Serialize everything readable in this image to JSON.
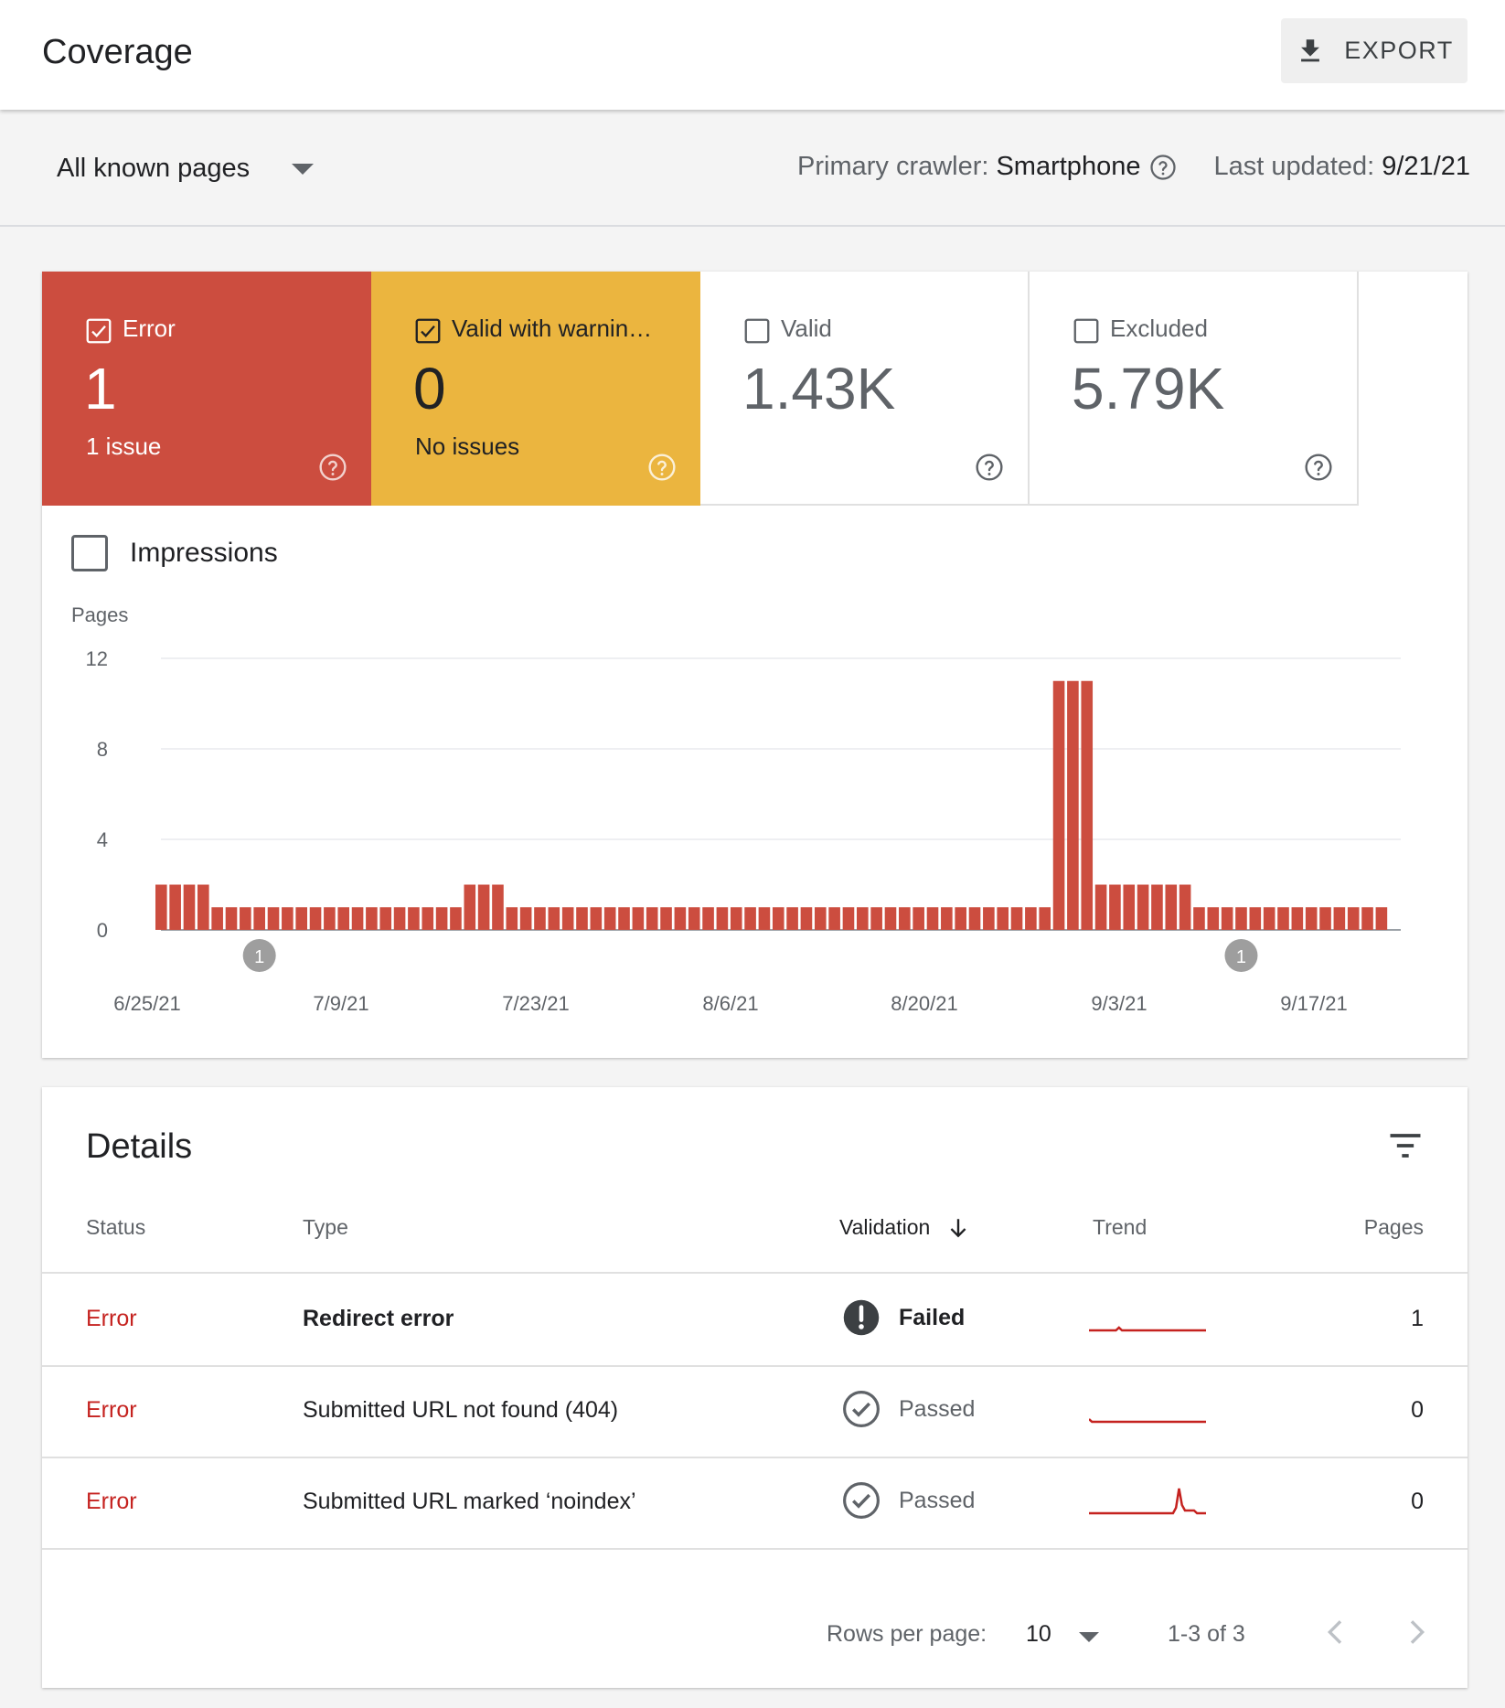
{
  "header": {
    "title": "Coverage",
    "export_label": "EXPORT"
  },
  "filter": {
    "page_select": "All known pages",
    "crawler_label": "Primary crawler:",
    "crawler_value": "Smartphone",
    "updated_label": "Last updated:",
    "updated_value": "9/21/21"
  },
  "tiles": [
    {
      "label": "Error",
      "value": "1",
      "sub": "1 issue",
      "checked": true
    },
    {
      "label": "Valid with warnin…",
      "value": "0",
      "sub": "No issues",
      "checked": true
    },
    {
      "label": "Valid",
      "value": "1.43K",
      "sub": "",
      "checked": false
    },
    {
      "label": "Excluded",
      "value": "5.79K",
      "sub": "",
      "checked": false
    }
  ],
  "impressions_label": "Impressions",
  "colors": {
    "error": "#cc4d3f",
    "warning": "#ebb53f",
    "link_error": "#c5221f"
  },
  "chart_data": {
    "type": "bar",
    "ylabel": "Pages",
    "yticks": [
      0,
      4,
      8,
      12
    ],
    "ylim": [
      0,
      12
    ],
    "grid": true,
    "x_tick_labels": [
      "6/25/21",
      "7/9/21",
      "7/23/21",
      "8/6/21",
      "8/20/21",
      "9/3/21",
      "9/17/21"
    ],
    "series": [
      {
        "values": [
          2,
          2,
          2,
          2,
          1,
          1,
          1,
          1,
          1,
          1,
          1,
          1,
          1,
          1,
          1,
          1,
          1,
          1,
          1,
          1,
          1,
          1,
          2,
          2,
          2,
          1,
          1,
          1,
          1,
          1,
          1,
          1,
          1,
          1,
          1,
          1,
          1,
          1,
          1,
          1,
          1,
          1,
          1,
          1,
          1,
          1,
          1,
          1,
          1,
          1,
          1,
          1,
          1,
          1,
          1,
          1,
          1,
          1,
          1,
          1,
          1,
          1,
          1,
          1,
          11,
          11,
          11,
          2,
          2,
          2,
          2,
          2,
          2,
          2,
          1,
          1,
          1,
          1,
          1,
          1,
          1,
          1,
          1,
          1,
          1,
          1,
          1,
          1
        ]
      }
    ],
    "annotations": [
      {
        "bar_index": 7,
        "label": "1"
      },
      {
        "bar_index": 77,
        "label": "1"
      }
    ]
  },
  "details": {
    "title": "Details",
    "columns": {
      "status": "Status",
      "type": "Type",
      "validation": "Validation",
      "trend": "Trend",
      "pages": "Pages"
    },
    "rows": [
      {
        "status": "Error",
        "type": "Redirect error",
        "validation": "Failed",
        "pages": "1",
        "trend": [
          0,
          0,
          0,
          0,
          0,
          0,
          0,
          0,
          0,
          0,
          1,
          0,
          0,
          0,
          0,
          0,
          0,
          0,
          0,
          0,
          0,
          0,
          0,
          0,
          0,
          0,
          0,
          0,
          0,
          0,
          0,
          0,
          0,
          0,
          0,
          0,
          0,
          0,
          0,
          0
        ]
      },
      {
        "status": "Error",
        "type": "Submitted URL not found (404)",
        "validation": "Passed",
        "pages": "0",
        "trend": [
          1,
          0,
          0,
          0,
          0,
          0,
          0,
          0,
          0,
          0,
          0,
          0,
          0,
          0,
          0,
          0,
          0,
          0,
          0,
          0,
          0,
          0,
          0,
          0,
          0,
          0,
          0,
          0,
          0,
          0,
          0,
          0,
          0,
          0,
          0,
          0,
          0,
          0,
          0,
          0
        ]
      },
      {
        "status": "Error",
        "type": "Submitted URL marked ‘noindex’",
        "validation": "Passed",
        "pages": "0",
        "trend": [
          0,
          0,
          0,
          0,
          0,
          0,
          0,
          0,
          0,
          0,
          0,
          0,
          0,
          0,
          0,
          0,
          0,
          0,
          0,
          0,
          0,
          0,
          0,
          0,
          0,
          0,
          0,
          0,
          0,
          2,
          9,
          3,
          1,
          1,
          1,
          1,
          0,
          0,
          0,
          0
        ]
      }
    ],
    "pager": {
      "rows_label": "Rows per page:",
      "rows_value": "10",
      "range": "1-3 of 3"
    }
  }
}
